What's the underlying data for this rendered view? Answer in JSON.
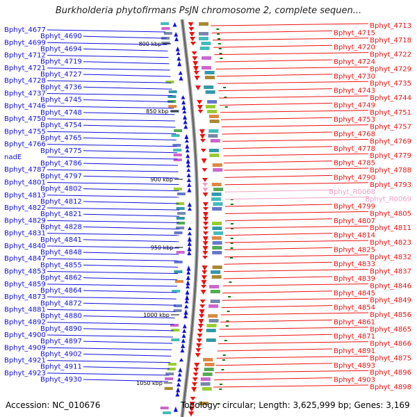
{
  "title": "Burkholderia phytofirmans PsJN chromosome 2, complete sequen...",
  "footer": {
    "accession": "Accession: NC_010676",
    "topology": "Topology: circular; Length: 3,625,999 bp; Genes: 3,169"
  },
  "colors": {
    "left_strand": "#1010dd",
    "right_strand": "#ee1111",
    "rna": "#f4a0c8",
    "backbone": "#999999",
    "tick_mark": "#117711"
  },
  "ticks": [
    "800 kbp",
    "850 kbp",
    "900 kbp",
    "950 kbp",
    "1000 kbp",
    "1050 kbp"
  ],
  "left_labels": [
    "Bphyt_4677",
    "Bphyt_4690",
    "Bphyt_4699",
    "Bphyt_4694",
    "Bphyt_4712",
    "Bphyt_4719",
    "Bphyt_4721",
    "Bphyt_4727",
    "Bphyt_4728",
    "Bphyt_4736",
    "Bphyt_4737",
    "Bphyt_4745",
    "Bphyt_4746",
    "Bphyt_4748",
    "Bphyt_4750",
    "Bphyt_4754",
    "Bphyt_4755",
    "Bphyt_4765",
    "Bphyt_4766",
    "Bphyt_4775",
    "nadE",
    "Bphyt_4786",
    "Bphyt_4787",
    "Bphyt_4797",
    "Bphyt_4801",
    "Bphyt_4802",
    "Bphyt_4813",
    "Bphyt_4812",
    "Bphyt_4822",
    "Bphyt_4821",
    "Bphyt_4829",
    "Bphyt_4828",
    "Bphyt_4831",
    "Bphyt_4841",
    "Bphyt_4840",
    "Bphyt_4848",
    "Bphyt_4847",
    "Bphyt_4855",
    "Bphyt_4853",
    "Bphyt_4862",
    "Bphyt_4859",
    "Bphyt_4864",
    "Bphyt_4873",
    "Bphyt_4872",
    "Bphyt_4881",
    "Bphyt_4880",
    "Bphyt_4892",
    "Bphyt_4890",
    "Bphyt_4900",
    "Bphyt_4897",
    "Bphyt_4909",
    "Bphyt_4902",
    "Bphyt_4921",
    "Bphyt_4911",
    "Bphyt_4923",
    "Bphyt_4930"
  ],
  "right_labels": [
    "Bphyt_4713",
    "Bphyt_4715",
    "Bphyt_4718",
    "Bphyt_4720",
    "Bphyt_4722",
    "Bphyt_4724",
    "Bphyt_4729",
    "Bphyt_4730",
    "Bphyt_4735",
    "Bphyt_4743",
    "Bphyt_4744",
    "Bphyt_4749",
    "Bphyt_4751",
    "Bphyt_4753",
    "Bphyt_4757",
    "Bphyt_4768",
    "Bphyt_4769",
    "Bphyt_4778",
    "Bphyt_4779",
    "Bphyt_4785",
    "Bphyt_4788",
    "Bphyt_4790",
    "Bphyt_4793",
    "Bphyt_R0068",
    "Bphyt_R0069",
    "Bphyt_4799",
    "Bphyt_4805",
    "Bphyt_4807",
    "Bphyt_4811",
    "Bphyt_4814",
    "Bphyt_4823",
    "Bphyt_4825",
    "Bphyt_4832",
    "Bphyt_4833",
    "Bphyt_4837",
    "Bphyt_4839",
    "Bphyt_4846",
    "Bphyt_4845",
    "Bphyt_4849",
    "Bphyt_4854",
    "Bphyt_4856",
    "Bphyt_4861",
    "Bphyt_4865",
    "Bphyt_4871",
    "Bphyt_4866",
    "Bphyt_4891",
    "Bphyt_4875",
    "Bphyt_4893",
    "Bphyt_4896",
    "Bphyt_4903",
    "Bphyt_4898"
  ]
}
